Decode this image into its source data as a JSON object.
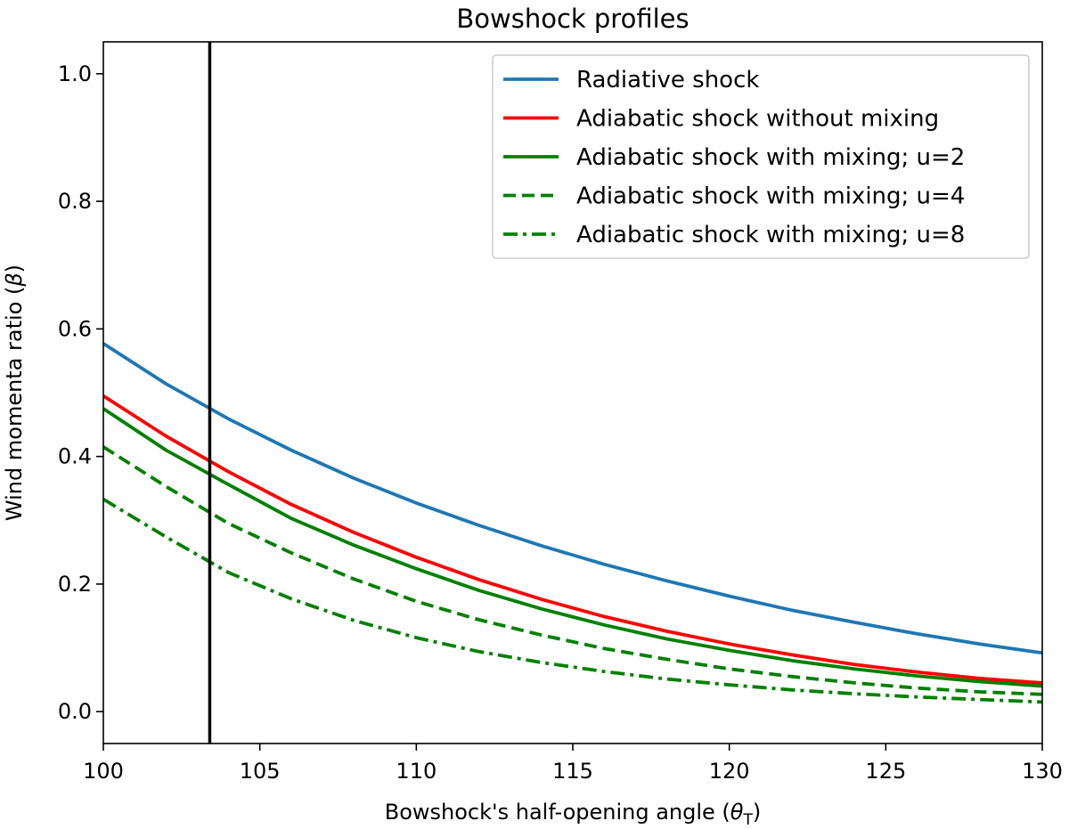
{
  "chart_data": {
    "type": "line",
    "title": "Bowshock profiles",
    "xlabel": "Bowshock's half-opening angle (",
    "xlabel_symbol": "θ",
    "xlabel_subscript": "T",
    "xlabel_close": ")",
    "ylabel": "Wind momenta ratio (",
    "ylabel_symbol": "β",
    "ylabel_close": ")",
    "xlim": [
      100,
      130
    ],
    "ylim": [
      -0.05,
      1.05
    ],
    "xticks": [
      100,
      105,
      110,
      115,
      120,
      125,
      130
    ],
    "yticks": [
      0.0,
      0.2,
      0.4,
      0.6,
      0.8,
      1.0
    ],
    "ytick_labels": [
      "0.0",
      "0.2",
      "0.4",
      "0.6",
      "0.8",
      "1.0"
    ],
    "vline": {
      "x": 103.4,
      "color": "#000000"
    },
    "legend_position": "top-right",
    "x": [
      100,
      102,
      104,
      106,
      108,
      110,
      112,
      114,
      116,
      118,
      120,
      122,
      124,
      126,
      128,
      130
    ],
    "series": [
      {
        "name": "Radiative shock",
        "color": "#1f77b4",
        "style": "solid",
        "values": [
          0.577,
          0.514,
          0.459,
          0.41,
          0.366,
          0.327,
          0.292,
          0.26,
          0.231,
          0.205,
          0.181,
          0.159,
          0.14,
          0.122,
          0.106,
          0.092
        ]
      },
      {
        "name": "Adiabatic shock without mixing",
        "color": "#ff0000",
        "style": "solid",
        "values": [
          0.495,
          0.432,
          0.376,
          0.325,
          0.281,
          0.242,
          0.207,
          0.176,
          0.149,
          0.126,
          0.106,
          0.089,
          0.074,
          0.062,
          0.052,
          0.045
        ]
      },
      {
        "name": "Adiabatic shock with mixing; u=2",
        "color": "#008000",
        "style": "solid",
        "values": [
          0.475,
          0.41,
          0.356,
          0.303,
          0.261,
          0.224,
          0.19,
          0.161,
          0.136,
          0.114,
          0.096,
          0.08,
          0.067,
          0.056,
          0.047,
          0.04
        ]
      },
      {
        "name": "Adiabatic shock with mixing; u=4",
        "color": "#008000",
        "style": "dashed",
        "values": [
          0.415,
          0.353,
          0.295,
          0.249,
          0.208,
          0.173,
          0.144,
          0.12,
          0.099,
          0.082,
          0.067,
          0.055,
          0.045,
          0.037,
          0.031,
          0.027
        ]
      },
      {
        "name": "Adiabatic shock with mixing; u=8",
        "color": "#008000",
        "style": "dashdot",
        "values": [
          0.333,
          0.274,
          0.218,
          0.177,
          0.143,
          0.116,
          0.094,
          0.077,
          0.063,
          0.051,
          0.042,
          0.034,
          0.028,
          0.023,
          0.019,
          0.015
        ]
      }
    ]
  }
}
